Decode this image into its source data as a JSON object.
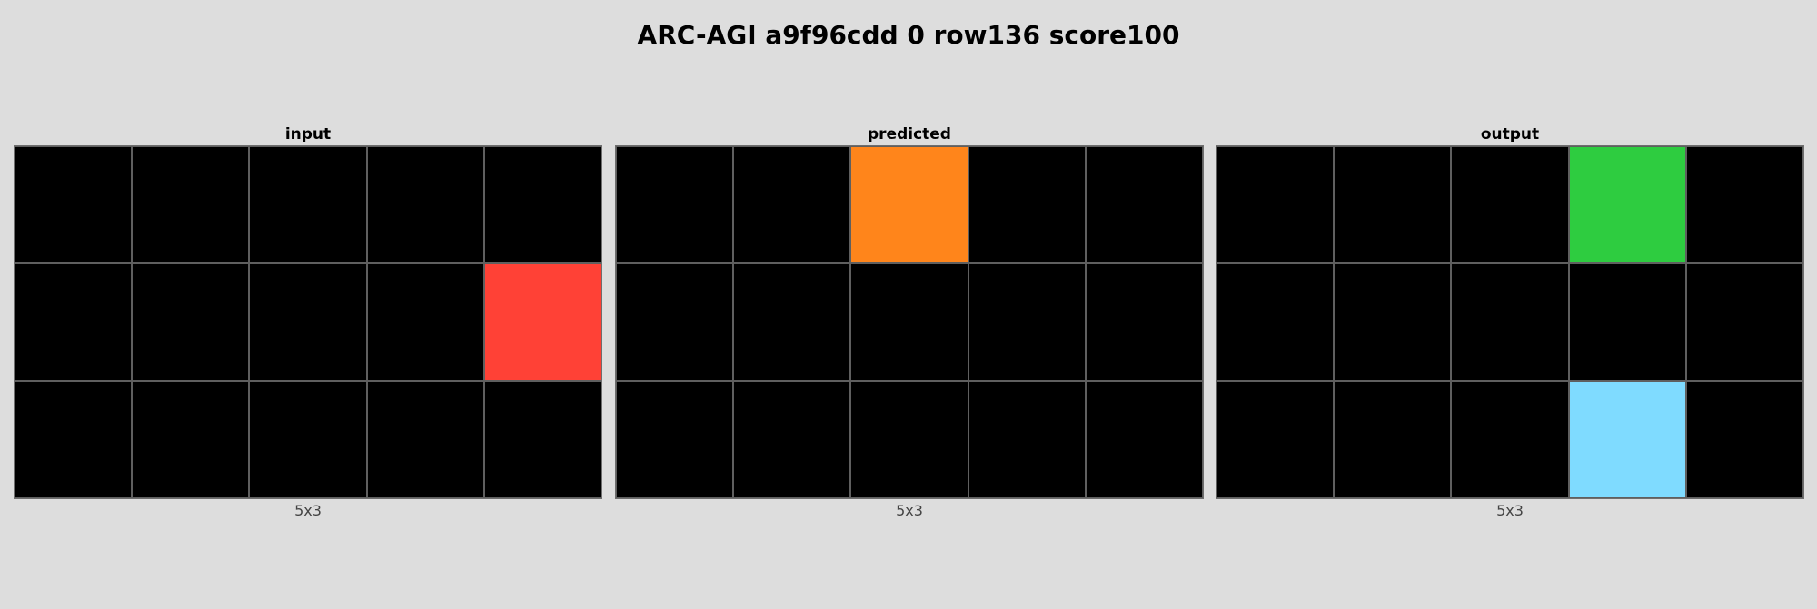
{
  "title": "ARC-AGI a9f96cdd 0 row136 score100",
  "palette": {
    "0": "#000000",
    "2": "#ff4136",
    "3": "#2ecc40",
    "7": "#ff851b",
    "8": "#7fdbff"
  },
  "panels": [
    {
      "label": "input",
      "dims": "5x3",
      "grid": [
        [
          0,
          0,
          0,
          0,
          0
        ],
        [
          0,
          0,
          0,
          0,
          2
        ],
        [
          0,
          0,
          0,
          0,
          0
        ]
      ]
    },
    {
      "label": "predicted",
      "dims": "5x3",
      "grid": [
        [
          0,
          0,
          7,
          0,
          0
        ],
        [
          0,
          0,
          0,
          0,
          0
        ],
        [
          0,
          0,
          0,
          0,
          0
        ]
      ]
    },
    {
      "label": "output",
      "dims": "5x3",
      "grid": [
        [
          0,
          0,
          0,
          3,
          0
        ],
        [
          0,
          0,
          0,
          0,
          0
        ],
        [
          0,
          0,
          0,
          8,
          0
        ]
      ]
    }
  ]
}
